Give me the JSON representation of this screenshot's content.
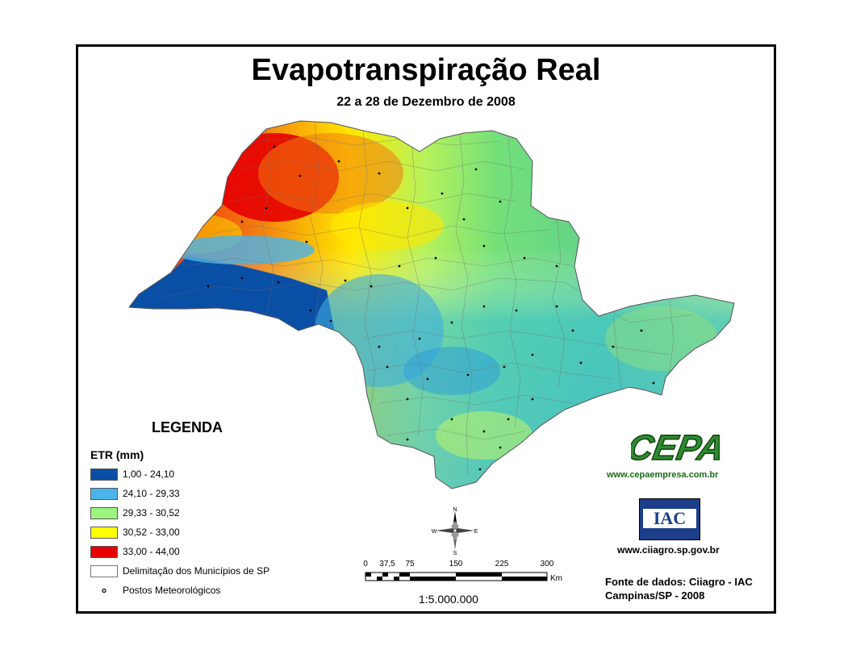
{
  "title": "Evapotranspiração Real",
  "subtitle": "22 a 28 de Dezembro de 2008",
  "legend": {
    "heading": "LEGENDA",
    "unit": "ETR (mm)",
    "classes": [
      {
        "label": "1,00 - 24,10",
        "color": "#0a4fa6"
      },
      {
        "label": "24,10 - 29,33",
        "color": "#4ab4ea"
      },
      {
        "label": "29,33 - 30,52",
        "color": "#9cf57e"
      },
      {
        "label": "30,52 - 33,00",
        "color": "#ffff00"
      },
      {
        "label": "33,00 - 44,00",
        "color": "#e60000"
      }
    ],
    "boundary_label": "Delimitação dos Municípios de SP",
    "stations_label": "Postos Meteorológicos"
  },
  "logos": {
    "cepa_text": "CEPA",
    "cepa_url": "www.cepaempresa.com.br",
    "iac_text": "IAC",
    "ciiagro_url": "www.ciiagro.sp.gov.br"
  },
  "source": {
    "line1": "Fonte de dados: Ciiagro - IAC",
    "line2": "Campinas/SP - 2008"
  },
  "compass": {
    "n": "N",
    "s": "S",
    "e": "E",
    "w": "W"
  },
  "scale": {
    "ticks": [
      "0",
      "37,5",
      "75",
      "150",
      "225",
      "300"
    ],
    "unit": "Km",
    "ratio": "1:5.000.000"
  }
}
